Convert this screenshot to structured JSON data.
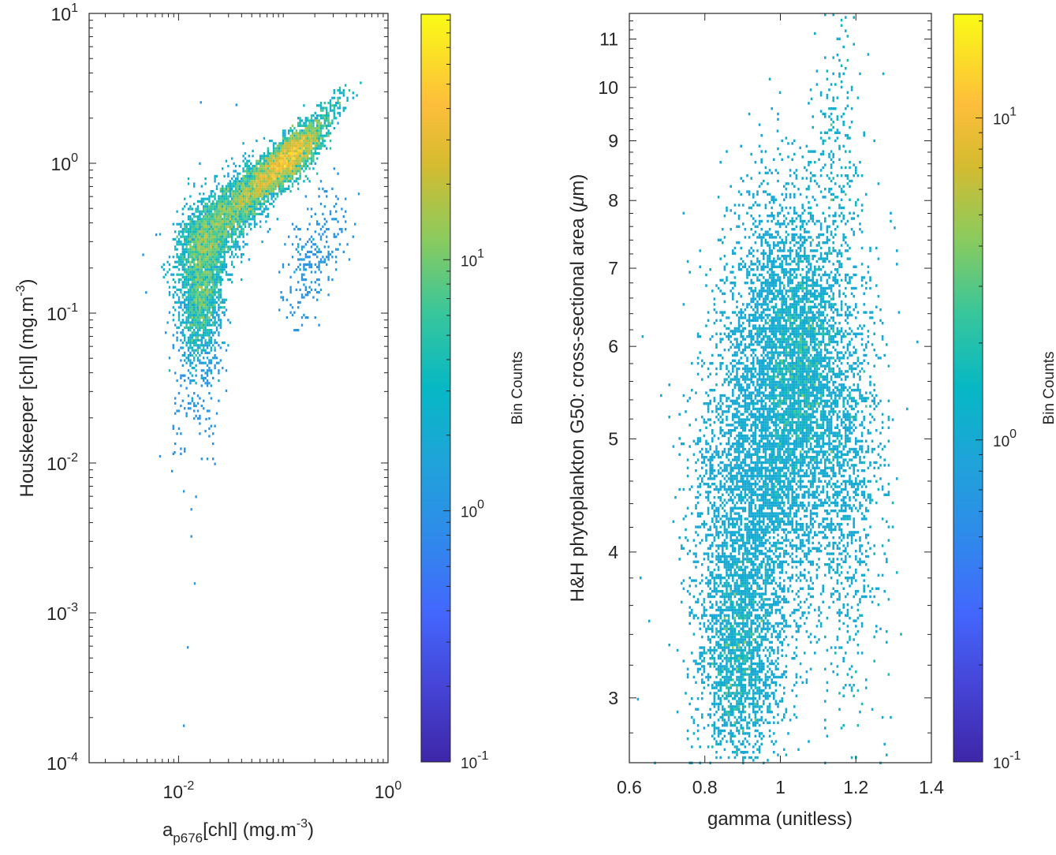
{
  "chart_data": [
    {
      "type": "heatmap",
      "subtype": "2d-histogram",
      "title": "",
      "xlabel": {
        "base": "a",
        "subscript": "p676",
        "rest": "[chl] (mg.m",
        "superscript": "-3",
        "close": ")"
      },
      "ylabel": {
        "text": "Houskeeper [chl] (mg.m",
        "superscript": "-3",
        "close": ")"
      },
      "xscale": "log",
      "yscale": "log",
      "xlim": [
        0.0014,
        1
      ],
      "ylim": [
        0.0001,
        10
      ],
      "xticks": [
        {
          "value": 0.01,
          "base": "10",
          "exp": "-2"
        },
        {
          "value": 1,
          "base": "10",
          "exp": "0"
        }
      ],
      "yticks": [
        {
          "value": 0.0001,
          "base": "10",
          "exp": "-4"
        },
        {
          "value": 0.001,
          "base": "10",
          "exp": "-3"
        },
        {
          "value": 0.01,
          "base": "10",
          "exp": "-2"
        },
        {
          "value": 0.1,
          "base": "10",
          "exp": "-1"
        },
        {
          "value": 1,
          "base": "10",
          "exp": "0"
        },
        {
          "value": 10,
          "base": "10",
          "exp": "1"
        }
      ],
      "colorbar": {
        "label": "Bin Counts",
        "scale": "log",
        "colormap": "parula",
        "clim": [
          0.1,
          95
        ],
        "ticks": [
          {
            "value": 0.1,
            "base": "10",
            "exp": "-1"
          },
          {
            "value": 1,
            "base": "10",
            "exp": "0"
          },
          {
            "value": 10,
            "base": "10",
            "exp": "1"
          }
        ]
      },
      "clusters": [
        {
          "x": 0.075,
          "y": 0.85,
          "sx": 0.2,
          "sy": 0.14,
          "rho": 0.85,
          "n": 2600,
          "peak": 60
        },
        {
          "x": 0.13,
          "y": 1.15,
          "sx": 0.13,
          "sy": 0.1,
          "rho": 0.7,
          "n": 1200,
          "peak": 45
        },
        {
          "x": 0.03,
          "y": 0.45,
          "sx": 0.2,
          "sy": 0.17,
          "rho": 0.7,
          "n": 1800,
          "peak": 30
        },
        {
          "x": 0.018,
          "y": 0.3,
          "sx": 0.13,
          "sy": 0.16,
          "rho": 0.4,
          "n": 1300,
          "peak": 25
        },
        {
          "x": 0.017,
          "y": 0.13,
          "sx": 0.1,
          "sy": 0.2,
          "rho": 0.3,
          "n": 1500,
          "peak": 25
        },
        {
          "x": 0.016,
          "y": 0.05,
          "sx": 0.13,
          "sy": 0.3,
          "rho": 0.1,
          "n": 300,
          "peak": 2
        },
        {
          "x": 0.2,
          "y": 0.25,
          "sx": 0.15,
          "sy": 0.22,
          "rho": 0.5,
          "n": 260,
          "peak": 2
        },
        {
          "x": 0.25,
          "y": 2.0,
          "sx": 0.12,
          "sy": 0.1,
          "rho": 0.8,
          "n": 200,
          "peak": 4
        }
      ],
      "outliers": [
        {
          "x": 0.011,
          "y": 0.0066
        },
        {
          "x": 0.013,
          "y": 0.005
        },
        {
          "x": 0.013,
          "y": 0.0033
        },
        {
          "x": 0.014,
          "y": 0.0016
        },
        {
          "x": 0.012,
          "y": 0.0006
        },
        {
          "x": 0.011,
          "y": 0.00018
        },
        {
          "x": 0.009,
          "y": 0.012
        },
        {
          "x": 0.0085,
          "y": 0.009
        },
        {
          "x": 0.018,
          "y": 0.02
        },
        {
          "x": 0.016,
          "y": 2.6
        },
        {
          "x": 0.035,
          "y": 2.5
        },
        {
          "x": 0.0045,
          "y": 0.25
        },
        {
          "x": 0.0048,
          "y": 0.14
        },
        {
          "x": 0.006,
          "y": 0.34
        }
      ]
    },
    {
      "type": "heatmap",
      "subtype": "2d-histogram",
      "title": "",
      "xlabel": {
        "text": "gamma (unitless)"
      },
      "ylabel": {
        "text": "H&H phytoplankton G50: cross-sectional area (",
        "symbol": "μ",
        "rest": "m)"
      },
      "xscale": "linear",
      "yscale": "log",
      "xlim": [
        0.6,
        1.4
      ],
      "ylim": [
        2.64,
        11.57
      ],
      "xticks": [
        {
          "value": 0.6,
          "label": "0.6"
        },
        {
          "value": 0.8,
          "label": "0.8"
        },
        {
          "value": 1.0,
          "label": "1"
        },
        {
          "value": 1.2,
          "label": "1.2"
        },
        {
          "value": 1.4,
          "label": "1.4"
        }
      ],
      "yticks": [
        {
          "value": 3,
          "label": "3"
        },
        {
          "value": 4,
          "label": "4"
        },
        {
          "value": 5,
          "label": "5"
        },
        {
          "value": 6,
          "label": "6"
        },
        {
          "value": 7,
          "label": "7"
        },
        {
          "value": 8,
          "label": "8"
        },
        {
          "value": 9,
          "label": "9"
        },
        {
          "value": 10,
          "label": "10"
        },
        {
          "value": 11,
          "label": "11"
        }
      ],
      "colorbar": {
        "label": "Bin Counts",
        "scale": "log",
        "colormap": "parula",
        "clim": [
          0.1,
          21
        ],
        "ticks": [
          {
            "value": 0.1,
            "base": "10",
            "exp": "-1"
          },
          {
            "value": 1,
            "base": "10",
            "exp": "0"
          },
          {
            "value": 10,
            "base": "10",
            "exp": "1"
          }
        ]
      },
      "clusters": [
        {
          "x": 1.0,
          "y": 5.1,
          "sx": 0.07,
          "sy": 0.09,
          "rho": 0.0,
          "n": 3500,
          "peak": 12
        },
        {
          "x": 1.06,
          "y": 5.8,
          "sx": 0.05,
          "sy": 0.06,
          "rho": 0.0,
          "n": 1400,
          "peak": 10
        },
        {
          "x": 1.17,
          "y": 5.0,
          "sx": 0.05,
          "sy": 0.09,
          "rho": 0.0,
          "n": 1300,
          "peak": 6
        },
        {
          "x": 0.9,
          "y": 4.3,
          "sx": 0.07,
          "sy": 0.08,
          "rho": 0.0,
          "n": 2200,
          "peak": 6
        },
        {
          "x": 0.89,
          "y": 3.25,
          "sx": 0.05,
          "sy": 0.05,
          "rho": 0.0,
          "n": 1600,
          "peak": 10
        },
        {
          "x": 1.0,
          "y": 6.6,
          "sx": 0.08,
          "sy": 0.06,
          "rho": 0.0,
          "n": 900,
          "peak": 3
        },
        {
          "x": 1.15,
          "y": 8.6,
          "sx": 0.03,
          "sy": 0.07,
          "rho": 0.0,
          "n": 220,
          "peak": 2
        },
        {
          "x": 1.22,
          "y": 3.8,
          "sx": 0.05,
          "sy": 0.1,
          "rho": 0.0,
          "n": 90,
          "peak": 1
        }
      ],
      "outliers": [
        {
          "x": 1.27,
          "y": 10.3
        },
        {
          "x": 1.23,
          "y": 10.7
        },
        {
          "x": 1.08,
          "y": 9.8
        },
        {
          "x": 0.99,
          "y": 9.2
        },
        {
          "x": 1.05,
          "y": 8.9
        },
        {
          "x": 1.3,
          "y": 7.6
        },
        {
          "x": 0.65,
          "y": 3.5
        },
        {
          "x": 0.62,
          "y": 3.0
        },
        {
          "x": 0.9,
          "y": 2.7
        }
      ]
    }
  ]
}
